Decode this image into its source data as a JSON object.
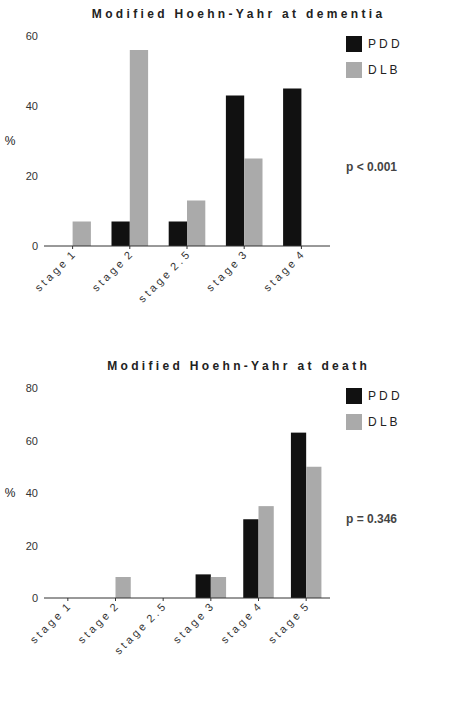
{
  "chart_data": [
    {
      "type": "bar",
      "title": "M o d i f i e d   H o e h n - Y a h r   a t   d e m e n t i a",
      "categories": [
        "s t a g e  1",
        "s t a g e  2",
        "s t a g e  2 . 5",
        "s t a g e  3",
        "s t a g e  4"
      ],
      "series": [
        {
          "name": "P D D",
          "color": "#111111",
          "values": [
            0,
            7,
            7,
            43,
            45
          ]
        },
        {
          "name": "D L B",
          "color": "#aaaaaa",
          "values": [
            7,
            56,
            13,
            25,
            0
          ]
        }
      ],
      "ylabel": "%",
      "ylim": [
        0,
        60
      ],
      "yticks": [
        0,
        20,
        40,
        60
      ],
      "annotation": "p < 0.001",
      "legend": "right",
      "grid": false
    },
    {
      "type": "bar",
      "title": "M o d i f i e d   H o e h n - Y a h r   a t   d e a t h",
      "categories": [
        "s t a g e  1",
        "s t a g e  2",
        "s t a g e  2 . 5",
        "s t a g e  3",
        "s t a g e  4",
        "s t a g e  5"
      ],
      "series": [
        {
          "name": "P D D",
          "color": "#111111",
          "values": [
            0,
            0,
            0,
            9,
            30,
            63
          ]
        },
        {
          "name": "D L B",
          "color": "#aaaaaa",
          "values": [
            0,
            8,
            0,
            8,
            35,
            50
          ]
        }
      ],
      "ylabel": "%",
      "ylim": [
        0,
        80
      ],
      "yticks": [
        0,
        20,
        40,
        60,
        80
      ],
      "annotation": "p = 0.346",
      "legend": "right",
      "grid": false
    }
  ]
}
